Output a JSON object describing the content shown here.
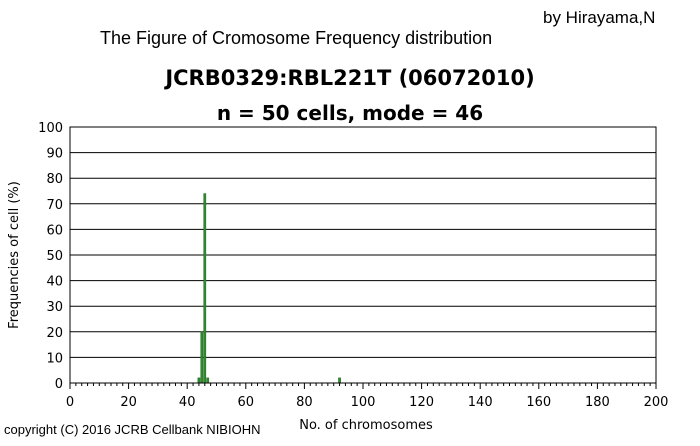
{
  "header": {
    "author": "by Hirayama,N",
    "figure_title": "The Figure of Cromosome Frequency distribution"
  },
  "footer": {
    "copyright": "copyright (C) 2016 JCRB Cellbank NIBIOHN"
  },
  "chart_data": {
    "type": "bar",
    "title": "JCRB0329:RBL221T (06072010)",
    "subtitle": "n = 50 cells, mode = 46",
    "xlabel": "No. of chromosomes",
    "ylabel": "Frequencies of cell (%)",
    "xlim": [
      0,
      200
    ],
    "ylim": [
      0,
      100
    ],
    "xticks": [
      "0",
      "20",
      "40",
      "60",
      "80",
      "100",
      "120",
      "140",
      "160",
      "180",
      "200"
    ],
    "yticks": [
      "0",
      "10",
      "20",
      "30",
      "40",
      "50",
      "60",
      "70",
      "80",
      "90",
      "100"
    ],
    "grid": "horizontal",
    "bar_color": "#2e8b2e",
    "series": [
      {
        "x": [
          44,
          45,
          46,
          47,
          92
        ],
        "values": [
          2,
          20,
          74,
          2,
          2
        ]
      }
    ]
  }
}
